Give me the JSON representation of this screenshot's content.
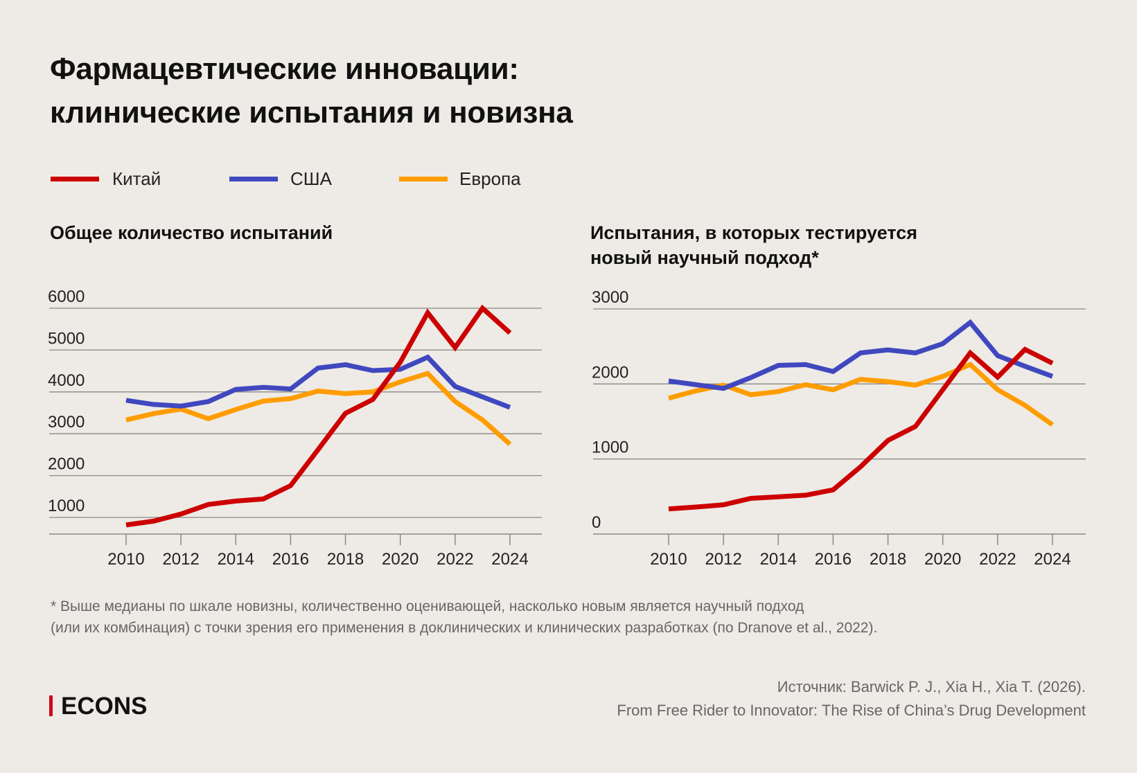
{
  "title": [
    "Фармацевтические инновации:",
    "клинические испытания и новизна"
  ],
  "legend": [
    {
      "name": "Китай",
      "color": "#CC0000"
    },
    {
      "name": "США",
      "color": "#4048BF"
    },
    {
      "name": "Европа",
      "color": "#FF9D00"
    }
  ],
  "footnote": [
    "* Выше медианы по шкале новизны, количественно оценивающей, насколько новым является научный подход",
    "(или их комбинация) с точки зрения его применения в доклинических и клинических разработках (по Dranove et al., 2022)."
  ],
  "source": [
    "Источник: Barwick P. J., Xia H., Xia T. (2026).",
    "From Free Rider to Innovator: The Rise of China’s Drug Development"
  ],
  "logo": "ECONS",
  "chart_data": [
    {
      "type": "line",
      "title": "Общее количество испытаний",
      "x": [
        2010,
        2011,
        2012,
        2013,
        2014,
        2015,
        2016,
        2017,
        2018,
        2019,
        2020,
        2021,
        2022,
        2023,
        2024
      ],
      "xticks": [
        "2010",
        "2012",
        "2014",
        "2016",
        "2018",
        "2020",
        "2022",
        "2024"
      ],
      "yticks": [
        "1000",
        "2000",
        "3000",
        "4000",
        "5000",
        "6000"
      ],
      "ylim": [
        600,
        6000
      ],
      "grid": true,
      "legend": "top-left",
      "series": [
        {
          "name": "Китай",
          "values": [
            820,
            910,
            1080,
            1310,
            1390,
            1440,
            1760,
            2620,
            3490,
            3820,
            4710,
            5890,
            5060,
            6000,
            5410
          ]
        },
        {
          "name": "США",
          "values": [
            3800,
            3700,
            3660,
            3770,
            4060,
            4110,
            4070,
            4570,
            4650,
            4510,
            4540,
            4830,
            4130,
            3880,
            3630
          ]
        },
        {
          "name": "Европа",
          "values": [
            3330,
            3480,
            3590,
            3360,
            3580,
            3780,
            3840,
            4020,
            3960,
            4000,
            4240,
            4440,
            3770,
            3330,
            2750
          ]
        }
      ]
    },
    {
      "type": "line",
      "title": "Испытания, в которых тестируется новый научный подход*",
      "title_lines": [
        "Испытания, в которых тестируется",
        "новый научный подход*"
      ],
      "x": [
        2010,
        2011,
        2012,
        2013,
        2014,
        2015,
        2016,
        2017,
        2018,
        2019,
        2020,
        2021,
        2022,
        2023,
        2024
      ],
      "xticks": [
        "2010",
        "2012",
        "2014",
        "2016",
        "2018",
        "2020",
        "2022",
        "2024"
      ],
      "yticks": [
        "0",
        "1000",
        "2000",
        "3000"
      ],
      "ylim": [
        0,
        3000
      ],
      "grid": true,
      "series": [
        {
          "name": "Китай",
          "values": [
            334,
            360,
            390,
            475,
            497,
            518,
            589,
            896,
            1248,
            1433,
            1923,
            2414,
            2092,
            2460,
            2276
          ]
        },
        {
          "name": "США",
          "values": [
            2040,
            1990,
            1940,
            2085,
            2248,
            2258,
            2166,
            2414,
            2454,
            2414,
            2537,
            2819,
            2377,
            2236,
            2101
          ]
        },
        {
          "name": "Европа",
          "values": [
            1810,
            1908,
            1985,
            1856,
            1899,
            1990,
            1923,
            2061,
            2031,
            1985,
            2101,
            2260,
            1923,
            1715,
            1457
          ]
        }
      ]
    }
  ]
}
